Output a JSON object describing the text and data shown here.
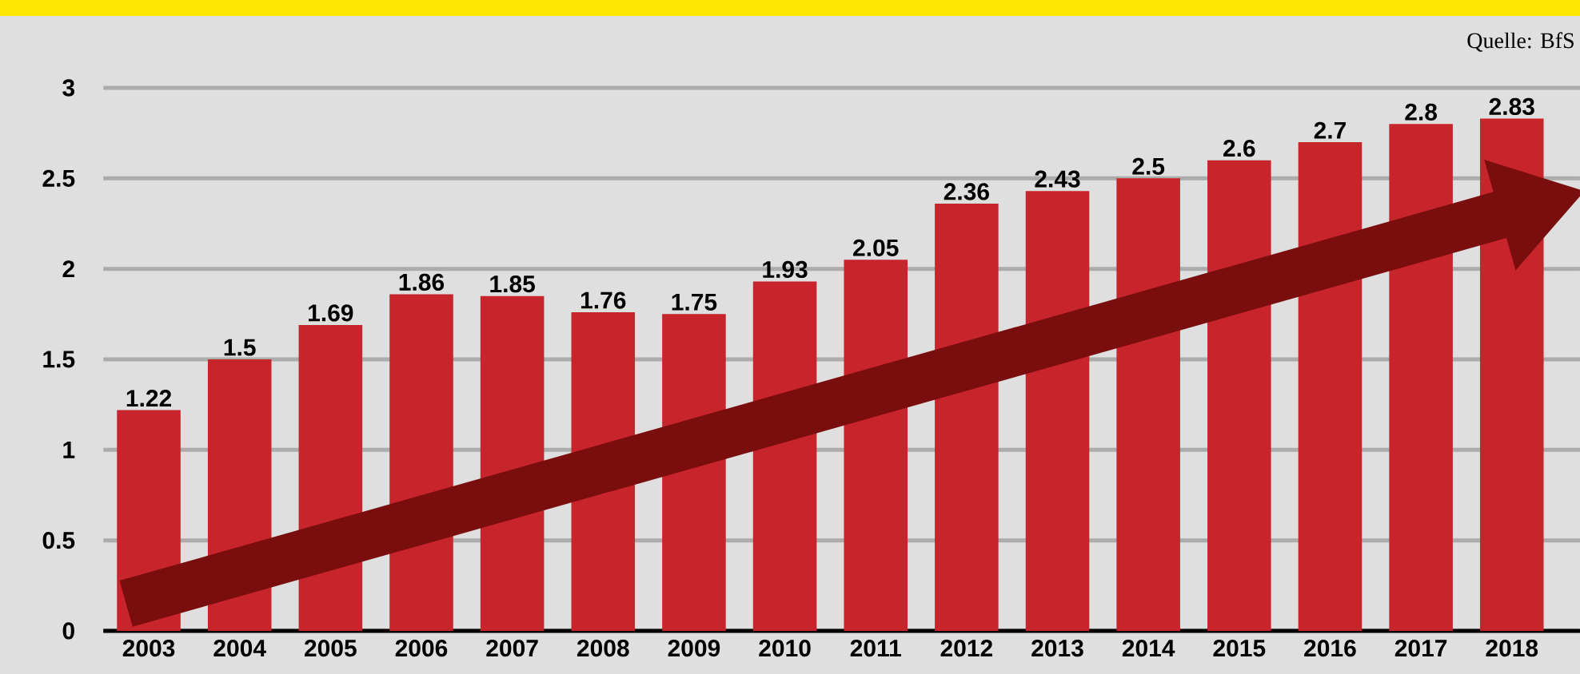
{
  "chart_data": {
    "type": "bar",
    "categories": [
      "2003",
      "2004",
      "2005",
      "2006",
      "2007",
      "2008",
      "2009",
      "2010",
      "2011",
      "2012",
      "2013",
      "2014",
      "2015",
      "2016",
      "2017",
      "2018"
    ],
    "values": [
      1.22,
      1.5,
      1.69,
      1.86,
      1.85,
      1.76,
      1.75,
      1.93,
      2.05,
      2.36,
      2.43,
      2.5,
      2.6,
      2.7,
      2.8,
      2.83
    ],
    "value_labels": [
      "1.22",
      "1.5",
      "1.69",
      "1.86",
      "1.85",
      "1.76",
      "1.75",
      "1.93",
      "2.05",
      "2.36",
      "2.43",
      "2.5",
      "2.6",
      "2.7",
      "2.8",
      "2.83"
    ],
    "color": "#c8242b",
    "ylim": [
      0,
      3
    ],
    "yticks": [
      0,
      0.5,
      1,
      1.5,
      2,
      2.5,
      3
    ],
    "grid": "y",
    "annotations": [
      "Quelle: BfS"
    ]
  }
}
